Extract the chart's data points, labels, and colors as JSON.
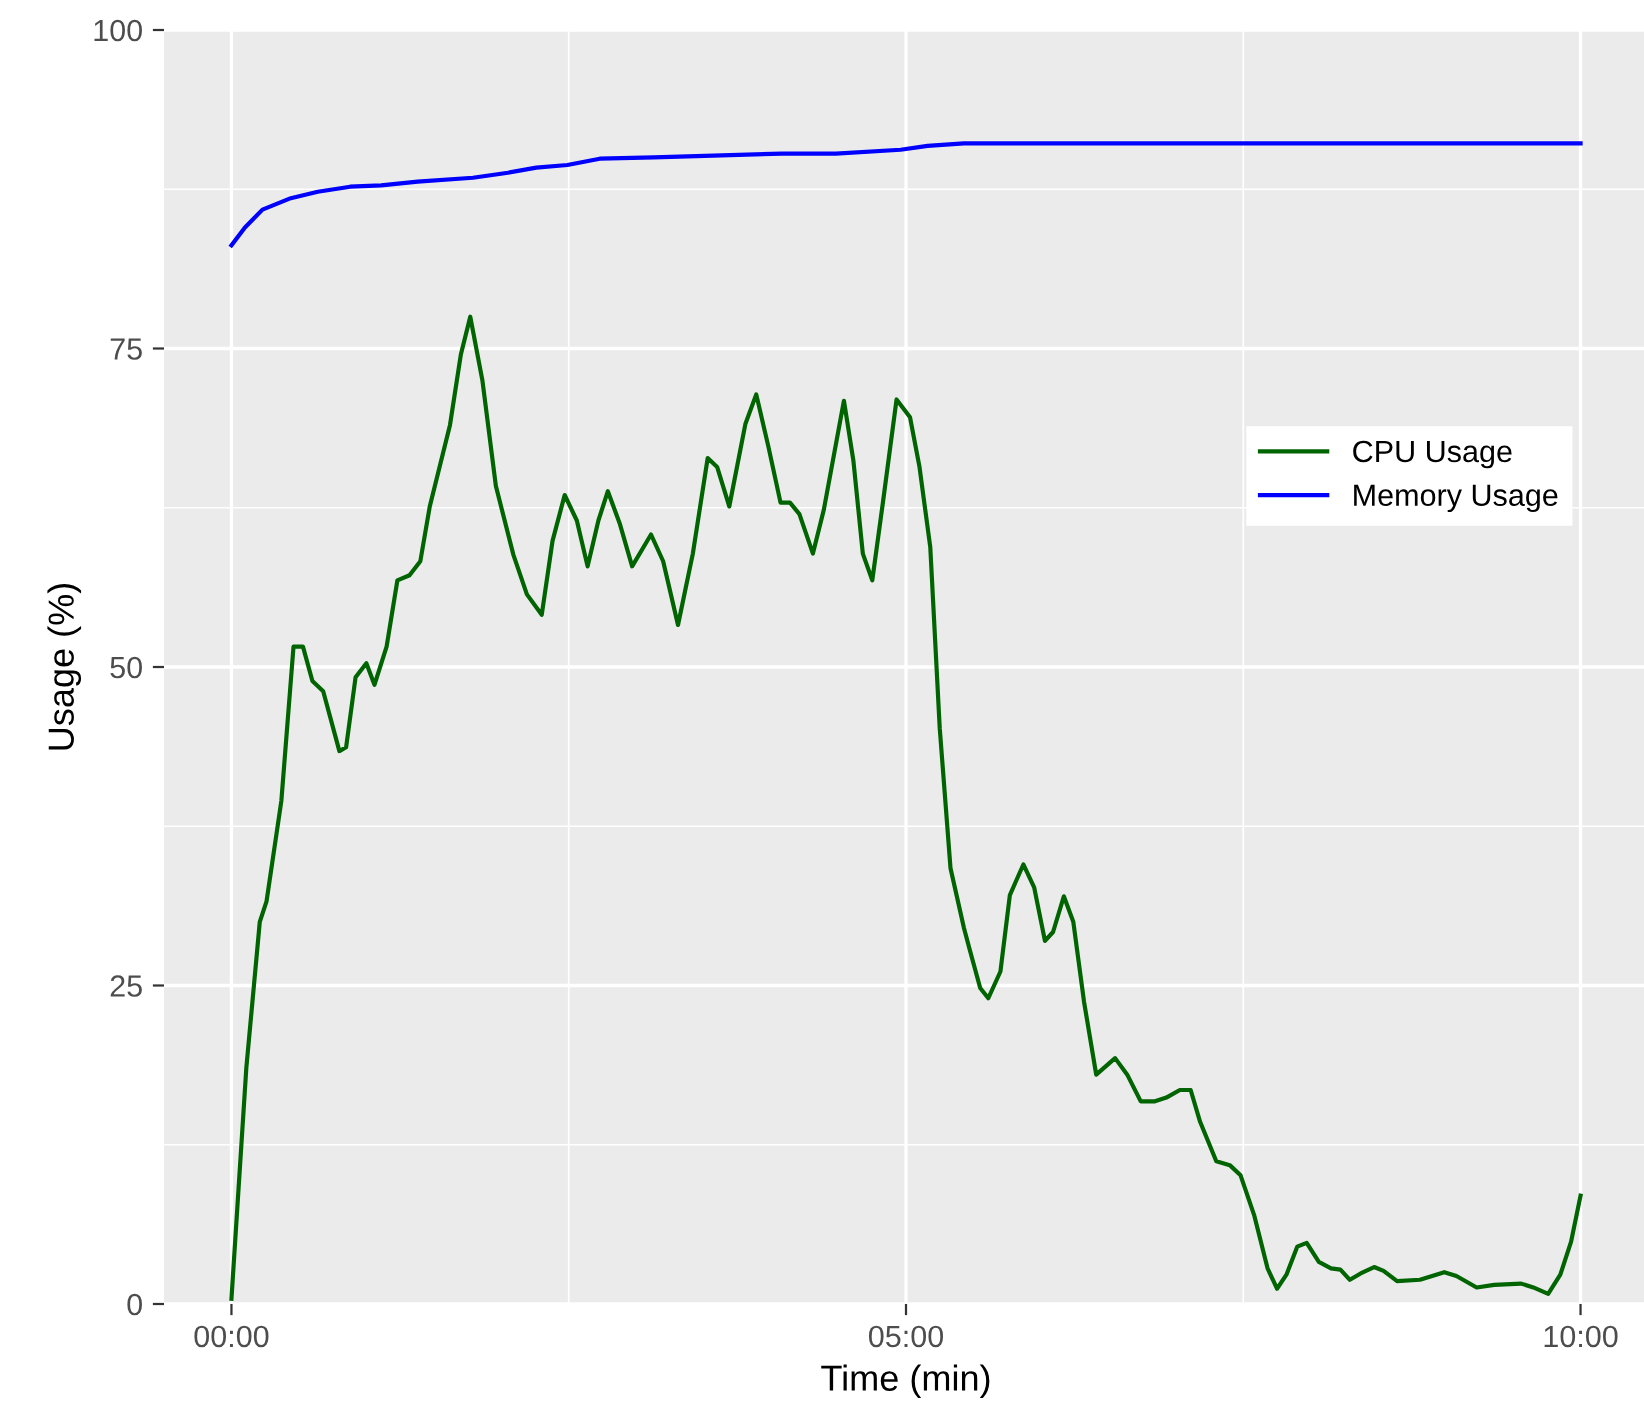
{
  "chart_data": {
    "type": "line",
    "xlabel": "Time (min)",
    "ylabel": "Usage (%)",
    "xlim": [
      -0.5,
      10.5
    ],
    "xticks": [
      {
        "value": 0,
        "label": "00:00"
      },
      {
        "value": 5,
        "label": "05:00"
      },
      {
        "value": 10,
        "label": "10:00"
      }
    ],
    "ylim": [
      0,
      100
    ],
    "yticks": [
      0,
      25,
      50,
      75,
      100
    ],
    "grid": true,
    "legend": "right",
    "series": [
      {
        "name": "CPU Usage",
        "color": "#006400",
        "x": [
          0.0,
          0.11,
          0.21,
          0.26,
          0.37,
          0.46,
          0.53,
          0.6,
          0.68,
          0.8,
          0.85,
          0.92,
          1.0,
          1.06,
          1.15,
          1.23,
          1.32,
          1.4,
          1.47,
          1.62,
          1.7,
          1.77,
          1.86,
          1.96,
          2.09,
          2.19,
          2.3,
          2.38,
          2.47,
          2.56,
          2.64,
          2.72,
          2.79,
          2.88,
          2.97,
          3.11,
          3.2,
          3.31,
          3.42,
          3.53,
          3.6,
          3.69,
          3.81,
          3.89,
          3.98,
          4.07,
          4.14,
          4.21,
          4.31,
          4.39,
          4.54,
          4.61,
          4.68,
          4.75,
          4.83,
          4.93,
          5.03,
          5.1,
          5.18,
          5.25,
          5.33,
          5.43,
          5.47,
          5.55,
          5.61,
          5.7,
          5.77,
          5.87,
          5.95,
          6.03,
          6.09,
          6.17,
          6.24,
          6.32,
          6.41,
          6.55,
          6.64,
          6.74,
          6.84,
          6.93,
          7.03,
          7.11,
          7.18,
          7.3,
          7.4,
          7.48,
          7.58,
          7.68,
          7.75,
          7.82,
          7.9,
          7.97,
          8.06,
          8.15,
          8.22,
          8.29,
          8.37,
          8.47,
          8.54,
          8.64,
          8.81,
          8.99,
          9.08,
          9.23,
          9.36,
          9.56,
          9.65,
          9.76,
          9.85,
          9.93,
          10.0
        ],
        "values": [
          0.4,
          18.5,
          30,
          31.6,
          39.5,
          51.6,
          51.6,
          48.9,
          48.1,
          43.4,
          43.7,
          49.2,
          50.3,
          48.6,
          51.6,
          56.8,
          57.2,
          58.3,
          62.6,
          69.0,
          74.5,
          77.5,
          72.5,
          64.2,
          58.8,
          55.7,
          54.1,
          59.9,
          63.5,
          61.5,
          57.9,
          61.5,
          63.8,
          61.2,
          57.9,
          60.4,
          58.3,
          53.3,
          58.9,
          66.4,
          65.7,
          62.6,
          69.1,
          71.4,
          67.3,
          62.9,
          62.9,
          62.0,
          58.9,
          62.3,
          70.9,
          66.2,
          58.9,
          56.8,
          63.0,
          71.0,
          69.6,
          65.7,
          59.4,
          45.2,
          34.2,
          29.5,
          27.9,
          24.8,
          24.0,
          26.1,
          32.1,
          34.5,
          32.7,
          28.5,
          29.2,
          32.0,
          30.0,
          23.7,
          18.0,
          19.3,
          18.0,
          15.9,
          15.9,
          16.2,
          16.8,
          16.8,
          14.3,
          11.2,
          10.9,
          10.1,
          7.0,
          2.8,
          1.2,
          2.3,
          4.5,
          4.8,
          3.3,
          2.8,
          2.7,
          1.9,
          2.4,
          2.9,
          2.6,
          1.8,
          1.9,
          2.5,
          2.2,
          1.3,
          1.5,
          1.6,
          1.3,
          0.8,
          2.3,
          4.9,
          8.5
        ]
      },
      {
        "name": "Memory Usage",
        "color": "#0000ff",
        "x": [
          0.0,
          0.1,
          0.23,
          0.44,
          0.64,
          0.88,
          1.11,
          1.38,
          1.79,
          2.05,
          2.26,
          2.49,
          2.73,
          3.13,
          4.08,
          4.48,
          4.96,
          5.16,
          5.43,
          5.56,
          7.18,
          10.0
        ],
        "values": [
          83.1,
          84.5,
          85.9,
          86.8,
          87.3,
          87.7,
          87.8,
          88.1,
          88.4,
          88.8,
          89.2,
          89.4,
          89.9,
          90.0,
          90.3,
          90.3,
          90.6,
          90.9,
          91.1,
          91.1,
          91.1,
          91.1
        ]
      }
    ]
  }
}
